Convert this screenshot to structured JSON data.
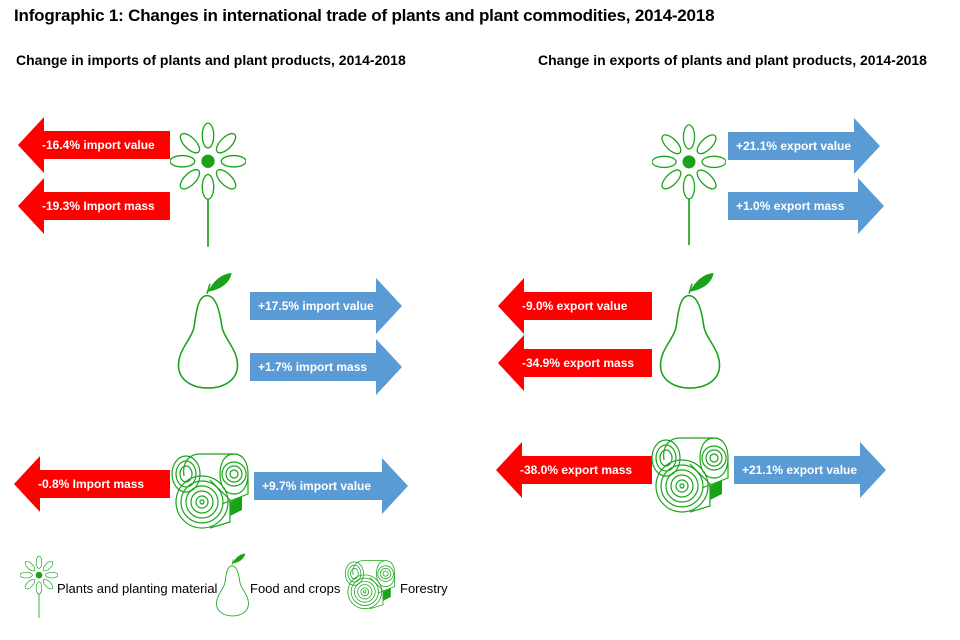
{
  "title": "Infographic 1: Changes in international trade of plants and plant commodities, 2014-2018",
  "imports": {
    "heading": "Change in imports of plants and plant products, 2014-2018",
    "plants": {
      "value_label": "-16.4%  import value",
      "mass_label": "-19.3%  Import mass"
    },
    "food": {
      "value_label": "+17.5%  import value",
      "mass_label": "+1.7% import mass"
    },
    "forestry": {
      "mass_label": "-0.8%  Import mass",
      "value_label": "+9.7% import value"
    }
  },
  "exports": {
    "heading": "Change in exports of plants and plant products, 2014-2018",
    "plants": {
      "value_label": "+21.1% export value",
      "mass_label": "+1.0% export mass"
    },
    "food": {
      "value_label": "-9.0%  export value",
      "mass_label": "-34.9%  export mass"
    },
    "forestry": {
      "mass_label": "-38.0%  export mass",
      "value_label": "+21.1% export value"
    }
  },
  "legend": {
    "plants": "Plants and planting material",
    "food": "Food and crops",
    "forestry": "Forestry"
  },
  "colors": {
    "decrease": "#ff0000",
    "increase": "#5b9bd5",
    "icon": "#1aa31a"
  },
  "icons": {
    "plants": "flower-icon",
    "food": "pear-icon",
    "forestry": "log-icon"
  }
}
